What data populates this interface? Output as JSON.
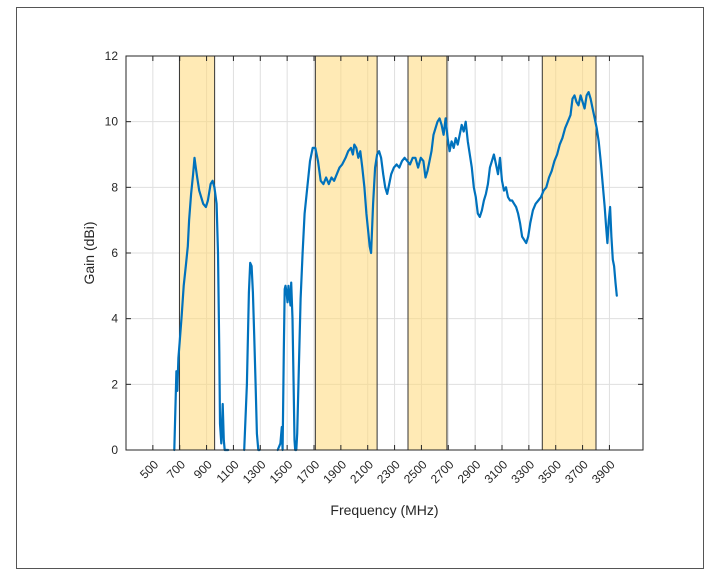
{
  "chart_data": {
    "type": "line",
    "title": "",
    "xlabel": "Frequency (MHz)",
    "ylabel": "Gain (dBi)",
    "xlim": [
      300,
      4150
    ],
    "ylim": [
      0,
      12
    ],
    "grid": true,
    "x_ticks": [
      500,
      700,
      900,
      1100,
      1300,
      1500,
      1700,
      1900,
      2100,
      2300,
      2500,
      2700,
      2900,
      3100,
      3300,
      3500,
      3700,
      3900
    ],
    "x_tick_labels": [
      "500",
      "700",
      "900",
      "1100",
      "1300",
      "1500",
      "1700",
      "1900",
      "2100",
      "2300",
      "2500",
      "2700",
      "2900",
      "3100",
      "3300",
      "3500",
      "3700",
      "3900"
    ],
    "y_ticks": [
      0,
      2,
      4,
      6,
      8,
      10,
      12
    ],
    "y_tick_labels": [
      "0",
      "2",
      "4",
      "6",
      "8",
      "10",
      "12"
    ],
    "bands": [
      {
        "start": 698,
        "end": 960
      },
      {
        "start": 1710,
        "end": 2170
      },
      {
        "start": 2400,
        "end": 2690
      },
      {
        "start": 3400,
        "end": 3800
      }
    ],
    "series": [
      {
        "color": "#0072BD",
        "segments": [
          [
            [
              660,
              0
            ],
            [
              675,
              2.4
            ],
            [
              682,
              1.8
            ],
            [
              690,
              2.8
            ],
            [
              700,
              3.3
            ],
            [
              715,
              4.1
            ],
            [
              730,
              5.0
            ],
            [
              745,
              5.6
            ],
            [
              760,
              6.2
            ],
            [
              770,
              7.0
            ],
            [
              785,
              7.8
            ],
            [
              800,
              8.4
            ],
            [
              810,
              8.9
            ],
            [
              820,
              8.6
            ],
            [
              830,
              8.3
            ],
            [
              845,
              7.9
            ],
            [
              860,
              7.7
            ],
            [
              875,
              7.5
            ],
            [
              895,
              7.4
            ],
            [
              910,
              7.6
            ],
            [
              930,
              8.1
            ],
            [
              945,
              8.2
            ],
            [
              958,
              8.0
            ],
            [
              965,
              7.8
            ],
            [
              975,
              7.5
            ],
            [
              985,
              6.0
            ],
            [
              995,
              3.0
            ],
            [
              1000,
              0.8
            ],
            [
              1010,
              0.2
            ],
            [
              1020,
              1.4
            ],
            [
              1028,
              0.3
            ],
            [
              1035,
              0.0
            ],
            [
              1060,
              0.0
            ]
          ],
          [
            [
              1180,
              0.0
            ],
            [
              1200,
              2.0
            ],
            [
              1215,
              4.8
            ],
            [
              1225,
              5.7
            ],
            [
              1235,
              5.6
            ],
            [
              1245,
              4.8
            ],
            [
              1255,
              3.5
            ],
            [
              1265,
              2.0
            ],
            [
              1275,
              0.5
            ],
            [
              1285,
              0.0
            ],
            [
              1295,
              0.0
            ]
          ],
          [
            [
              1430,
              0.0
            ],
            [
              1450,
              0.2
            ],
            [
              1460,
              0.7
            ],
            [
              1466,
              0.0
            ],
            [
              1475,
              3.0
            ],
            [
              1482,
              4.9
            ],
            [
              1488,
              5.0
            ],
            [
              1496,
              4.8
            ],
            [
              1503,
              4.5
            ],
            [
              1510,
              5.0
            ],
            [
              1517,
              4.7
            ],
            [
              1525,
              4.4
            ],
            [
              1530,
              5.1
            ],
            [
              1540,
              4.0
            ],
            [
              1548,
              2.0
            ],
            [
              1555,
              0.3
            ],
            [
              1560,
              0.0
            ],
            [
              1568,
              0.0
            ],
            [
              1575,
              0.5
            ],
            [
              1585,
              2.2
            ],
            [
              1600,
              4.6
            ],
            [
              1615,
              6.0
            ],
            [
              1630,
              7.2
            ],
            [
              1650,
              8.0
            ],
            [
              1670,
              8.8
            ],
            [
              1690,
              9.2
            ],
            [
              1710,
              9.2
            ],
            [
              1730,
              8.8
            ],
            [
              1750,
              8.2
            ],
            [
              1770,
              8.1
            ],
            [
              1790,
              8.3
            ],
            [
              1810,
              8.1
            ],
            [
              1830,
              8.3
            ],
            [
              1850,
              8.2
            ],
            [
              1870,
              8.4
            ],
            [
              1890,
              8.6
            ],
            [
              1910,
              8.7
            ],
            [
              1935,
              8.9
            ],
            [
              1955,
              9.1
            ],
            [
              1975,
              9.2
            ],
            [
              1990,
              9.0
            ],
            [
              2000,
              9.3
            ],
            [
              2015,
              9.2
            ],
            [
              2030,
              8.9
            ],
            [
              2045,
              9.1
            ],
            [
              2060,
              8.6
            ],
            [
              2075,
              8.0
            ],
            [
              2090,
              7.2
            ],
            [
              2105,
              6.6
            ],
            [
              2115,
              6.2
            ],
            [
              2125,
              6.0
            ],
            [
              2140,
              7.5
            ],
            [
              2155,
              8.6
            ],
            [
              2170,
              9.0
            ],
            [
              2185,
              9.1
            ],
            [
              2200,
              8.9
            ],
            [
              2215,
              8.4
            ],
            [
              2230,
              8.0
            ],
            [
              2245,
              7.8
            ],
            [
              2260,
              8.1
            ],
            [
              2275,
              8.4
            ],
            [
              2295,
              8.6
            ],
            [
              2315,
              8.7
            ],
            [
              2335,
              8.6
            ],
            [
              2355,
              8.8
            ],
            [
              2375,
              8.9
            ],
            [
              2395,
              8.8
            ],
            [
              2415,
              8.7
            ],
            [
              2435,
              8.9
            ],
            [
              2455,
              8.9
            ],
            [
              2475,
              8.6
            ],
            [
              2495,
              8.9
            ],
            [
              2515,
              8.8
            ],
            [
              2530,
              8.3
            ],
            [
              2545,
              8.5
            ],
            [
              2560,
              8.8
            ],
            [
              2575,
              9.1
            ],
            [
              2590,
              9.6
            ],
            [
              2605,
              9.8
            ],
            [
              2620,
              10.0
            ],
            [
              2635,
              10.1
            ],
            [
              2650,
              9.9
            ],
            [
              2665,
              9.6
            ],
            [
              2680,
              10.1
            ],
            [
              2695,
              9.5
            ],
            [
              2710,
              9.1
            ],
            [
              2725,
              9.4
            ],
            [
              2740,
              9.2
            ],
            [
              2755,
              9.5
            ],
            [
              2770,
              9.3
            ],
            [
              2785,
              9.6
            ],
            [
              2800,
              9.9
            ],
            [
              2815,
              9.7
            ],
            [
              2830,
              10.0
            ],
            [
              2845,
              9.4
            ],
            [
              2860,
              9.0
            ],
            [
              2875,
              8.6
            ],
            [
              2890,
              8.0
            ],
            [
              2905,
              7.7
            ],
            [
              2920,
              7.2
            ],
            [
              2935,
              7.1
            ],
            [
              2950,
              7.3
            ],
            [
              2965,
              7.6
            ],
            [
              2980,
              7.8
            ],
            [
              2995,
              8.1
            ],
            [
              3010,
              8.6
            ],
            [
              3025,
              8.8
            ],
            [
              3040,
              9.0
            ],
            [
              3055,
              8.7
            ],
            [
              3070,
              8.4
            ],
            [
              3085,
              8.9
            ],
            [
              3100,
              8.2
            ],
            [
              3115,
              7.9
            ],
            [
              3130,
              8.0
            ],
            [
              3145,
              7.7
            ],
            [
              3160,
              7.6
            ],
            [
              3175,
              7.6
            ],
            [
              3190,
              7.5
            ],
            [
              3205,
              7.4
            ],
            [
              3220,
              7.2
            ],
            [
              3235,
              6.9
            ],
            [
              3250,
              6.5
            ],
            [
              3265,
              6.4
            ],
            [
              3280,
              6.3
            ],
            [
              3295,
              6.5
            ],
            [
              3310,
              6.9
            ],
            [
              3330,
              7.3
            ],
            [
              3350,
              7.5
            ],
            [
              3370,
              7.6
            ],
            [
              3390,
              7.7
            ],
            [
              3410,
              7.9
            ],
            [
              3430,
              8.0
            ],
            [
              3450,
              8.3
            ],
            [
              3470,
              8.5
            ],
            [
              3490,
              8.8
            ],
            [
              3510,
              9.0
            ],
            [
              3530,
              9.3
            ],
            [
              3550,
              9.5
            ],
            [
              3570,
              9.8
            ],
            [
              3590,
              10.0
            ],
            [
              3610,
              10.2
            ],
            [
              3625,
              10.7
            ],
            [
              3640,
              10.8
            ],
            [
              3655,
              10.6
            ],
            [
              3670,
              10.5
            ],
            [
              3685,
              10.8
            ],
            [
              3700,
              10.6
            ],
            [
              3715,
              10.4
            ],
            [
              3730,
              10.8
            ],
            [
              3745,
              10.9
            ],
            [
              3760,
              10.7
            ],
            [
              3775,
              10.4
            ],
            [
              3790,
              10.1
            ],
            [
              3805,
              9.8
            ],
            [
              3820,
              9.4
            ],
            [
              3835,
              8.8
            ],
            [
              3850,
              8.1
            ],
            [
              3865,
              7.4
            ],
            [
              3875,
              6.8
            ],
            [
              3885,
              6.3
            ],
            [
              3895,
              7.0
            ],
            [
              3905,
              7.4
            ],
            [
              3915,
              6.5
            ],
            [
              3925,
              5.8
            ],
            [
              3935,
              5.6
            ],
            [
              3945,
              5.1
            ],
            [
              3955,
              4.7
            ]
          ]
        ]
      }
    ]
  }
}
